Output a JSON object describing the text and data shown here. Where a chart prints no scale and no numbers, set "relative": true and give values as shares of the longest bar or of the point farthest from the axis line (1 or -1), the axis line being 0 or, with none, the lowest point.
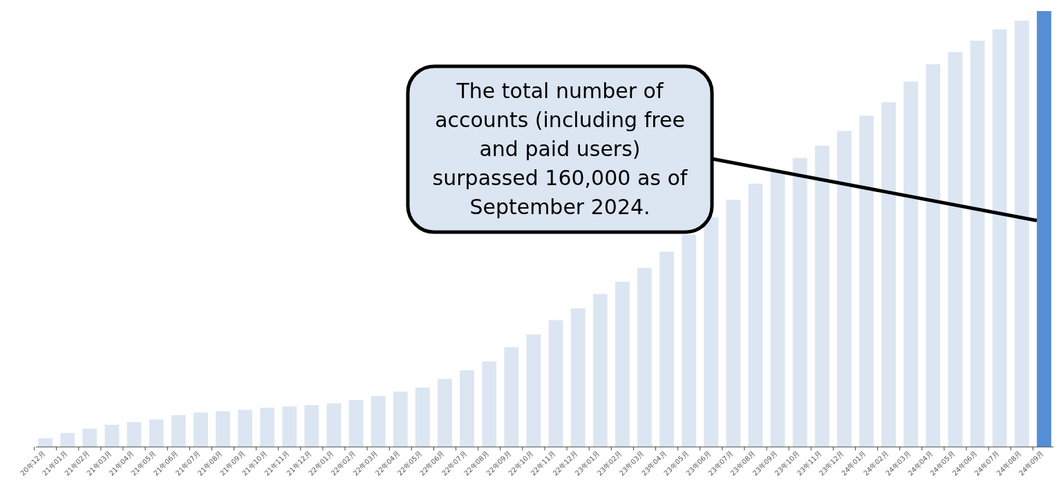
{
  "chart_data": {
    "type": "bar",
    "relative": true,
    "categories": [
      "20年12月",
      "21年01月",
      "21年02月",
      "21年03月",
      "21年04月",
      "21年05月",
      "21年06月",
      "21年07月",
      "21年08月",
      "21年09月",
      "21年10月",
      "21年11月",
      "21年12月",
      "22年01月",
      "22年02月",
      "22年03月",
      "22年04月",
      "22年05月",
      "22年06月",
      "22年07月",
      "22年08月",
      "22年09月",
      "22年10月",
      "22年11月",
      "22年12月",
      "23年01月",
      "23年02月",
      "23年03月",
      "23年04月",
      "23年05月",
      "23年06月",
      "23年07月",
      "23年08月",
      "23年09月",
      "23年10月",
      "23年11月",
      "23年12月",
      "24年01月",
      "24年02月",
      "24年03月",
      "24年04月",
      "24年05月",
      "24年06月",
      "24年07月",
      "24年08月",
      "24年09月"
    ],
    "values": [
      0.02,
      0.032,
      0.042,
      0.051,
      0.057,
      0.063,
      0.073,
      0.079,
      0.082,
      0.085,
      0.09,
      0.093,
      0.096,
      0.1,
      0.108,
      0.117,
      0.127,
      0.136,
      0.156,
      0.176,
      0.196,
      0.229,
      0.258,
      0.291,
      0.318,
      0.351,
      0.379,
      0.411,
      0.448,
      0.487,
      0.527,
      0.567,
      0.604,
      0.632,
      0.663,
      0.691,
      0.725,
      0.76,
      0.791,
      0.838,
      0.878,
      0.906,
      0.932,
      0.958,
      0.978,
      1
    ],
    "colors": [
      "#dce6f2",
      "#dce6f2",
      "#dce6f2",
      "#dce6f2",
      "#dce6f2",
      "#dce6f2",
      "#dce6f2",
      "#dce6f2",
      "#dce6f2",
      "#dce6f2",
      "#dce6f2",
      "#dce6f2",
      "#dce6f2",
      "#dce6f2",
      "#dce6f2",
      "#dce6f2",
      "#dce6f2",
      "#dce6f2",
      "#dce6f2",
      "#dce6f2",
      "#dce6f2",
      "#dce6f2",
      "#dce6f2",
      "#dce6f2",
      "#dce6f2",
      "#dce6f2",
      "#dce6f2",
      "#dce6f2",
      "#dce6f2",
      "#dce6f2",
      "#dce6f2",
      "#dce6f2",
      "#dce6f2",
      "#dce6f2",
      "#dce6f2",
      "#dce6f2",
      "#dce6f2",
      "#dce6f2",
      "#dce6f2",
      "#dce6f2",
      "#dce6f2",
      "#dce6f2",
      "#dce6f2",
      "#dce6f2",
      "#dce6f2",
      "#558ed5"
    ],
    "annotations": [
      "The total number of accounts (including free and paid users) surpassed 160,000 as of September 2024."
    ]
  }
}
